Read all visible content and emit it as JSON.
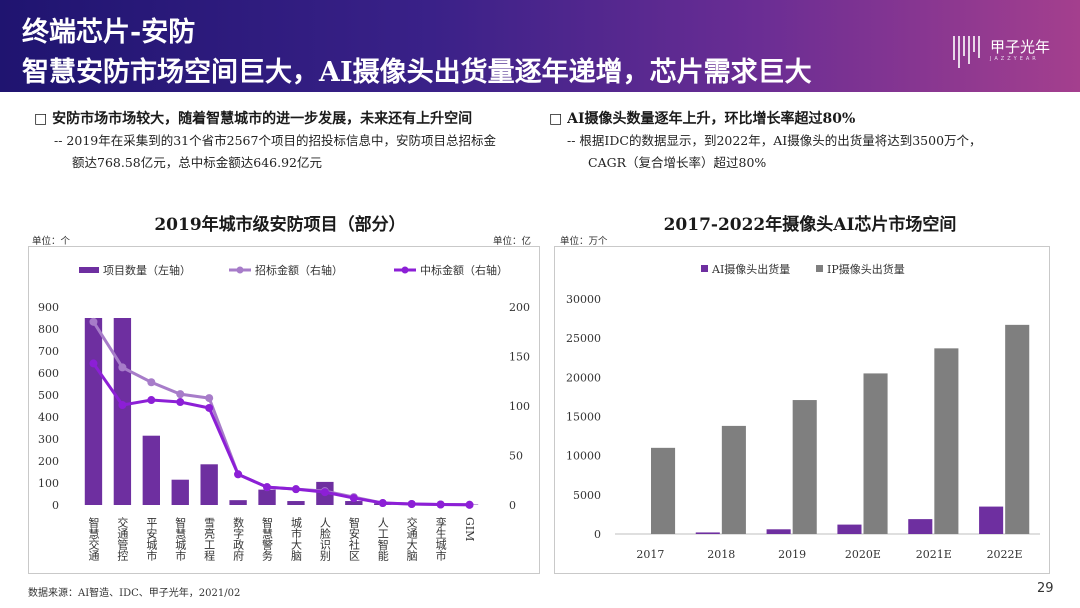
{
  "header": {
    "title_line1": "终端芯片-安防",
    "title_line2": "智慧安防市场空间巨大，AI摄像头出货量逐年递增，芯片需求巨大",
    "logo_name": "甲子光年",
    "logo_sub": "JAZZYEAR"
  },
  "left_text": {
    "bullet": "□ 安防市场市场较大，随着智慧城市的进一步发展，未来还有上升空间",
    "line1": "-- 2019年在采集到的31个省市2567个项目的招投标信息中，安防项目总招标金",
    "line2": "额达768.58亿元，总中标金额达646.92亿元"
  },
  "right_text": {
    "bullet": "□ AI摄像头数量逐年上升，环比增长率超过80%",
    "line1": "-- 根据IDC的数据显示，到2022年，AI摄像头的出货量将达到3500万个，",
    "line2": "CAGR（复合增长率）超过80%"
  },
  "left_chart_meta": {
    "unit_left": "单位：个",
    "unit_right": "单位：亿"
  },
  "right_chart_meta": {
    "unit": "单位：万个"
  },
  "footer": {
    "source": "数据来源：AI智造、IDC、甲子光年，2021/02",
    "page": "29"
  },
  "colors": {
    "purple_dark": "#6e2fa0",
    "purple_light": "#a77cc9",
    "purple_line": "#8c1fd6",
    "gray_bar": "#7f7f7f",
    "header_start": "#1f1470",
    "header_end": "#a43f8e"
  },
  "chart_data": [
    {
      "type": "bar",
      "title": "2019年城市级安防项目（部分）",
      "categories": [
        "智慧交通",
        "交通管控",
        "平安城市",
        "智慧城市",
        "雪亮工程",
        "数字政府",
        "智慧警务",
        "城市大脑",
        "人脸识别",
        "智安社区",
        "人工智能",
        "交通大脑",
        "孪生城市",
        "GIM"
      ],
      "series": [
        {
          "name": "项目数量（左轴）",
          "axis": "left",
          "kind": "bar",
          "values": [
            850,
            850,
            315,
            115,
            185,
            22,
            70,
            18,
            105,
            18,
            8,
            8,
            5,
            2
          ]
        },
        {
          "name": "招标金额（右轴）",
          "axis": "right",
          "kind": "line",
          "values": [
            185,
            139,
            124,
            112,
            108,
            31,
            18,
            16,
            14,
            8,
            2,
            1,
            0.5,
            0.2
          ]
        },
        {
          "name": "中标金额（右轴）",
          "axis": "right",
          "kind": "line",
          "values": [
            143,
            101,
            106,
            104,
            98,
            31,
            18,
            16,
            13,
            7,
            2,
            1,
            0.5,
            0.2
          ]
        }
      ],
      "yleft_ticks": [
        0,
        100,
        200,
        300,
        400,
        500,
        600,
        700,
        800,
        900
      ],
      "yright_ticks": [
        0,
        50,
        100,
        150,
        200
      ],
      "ylim_left": [
        0,
        900
      ],
      "ylim_right": [
        0,
        200
      ],
      "legend": "top"
    },
    {
      "type": "bar",
      "title": "2017-2022年摄像头AI芯片市场空间",
      "categories": [
        "2017",
        "2018",
        "2019",
        "2020E",
        "2021E",
        "2022E"
      ],
      "series": [
        {
          "name": "AI摄像头出货量",
          "values": [
            0,
            200,
            600,
            1200,
            1900,
            3500
          ]
        },
        {
          "name": "IP摄像头出货量",
          "values": [
            11000,
            13800,
            17100,
            20500,
            23700,
            26700
          ]
        }
      ],
      "y_ticks": [
        0,
        5000,
        10000,
        15000,
        20000,
        25000,
        30000
      ],
      "ylim": [
        0,
        30000
      ],
      "legend": "top"
    }
  ]
}
